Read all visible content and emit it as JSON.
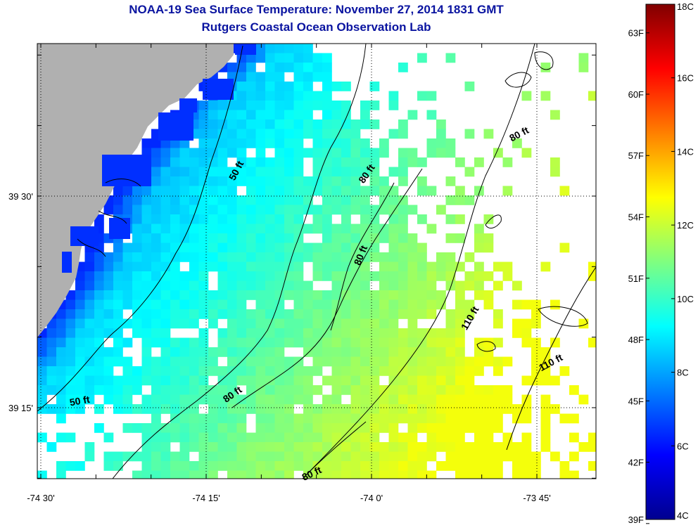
{
  "title": "NOAA-19 Sea Surface Temperature:  November 27, 2014 1831 GMT",
  "subtitle": "Rutgers Coastal Ocean Observation Lab",
  "axes": {
    "lon_ticks": [
      {
        "value": -74.5,
        "label": "-74 30'"
      },
      {
        "value": -74.25,
        "label": "-74 15'"
      },
      {
        "value": -74.0,
        "label": "-74 0'"
      },
      {
        "value": -73.75,
        "label": "-73 45'"
      }
    ],
    "lat_ticks": [
      {
        "value": 39.5,
        "label": "39 30'"
      },
      {
        "value": 39.25,
        "label": "39 15'"
      }
    ]
  },
  "depth_labels": [
    {
      "text": "50 ft",
      "rot": -62
    },
    {
      "text": "80 ft",
      "rot": -55
    },
    {
      "text": "80 ft",
      "rot": -28
    },
    {
      "text": "80 ft",
      "rot": -68
    },
    {
      "text": "110 ft",
      "rot": -60
    },
    {
      "text": "110 ft",
      "rot": -28
    },
    {
      "text": "50 ft",
      "rot": -10
    },
    {
      "text": "80 ft",
      "rot": -35
    },
    {
      "text": "80 ft",
      "rot": -25
    }
  ],
  "colorbar": {
    "celsius_labels": [
      "18C",
      "16C",
      "14C",
      "12C",
      "10C",
      "8C",
      "6C",
      "4C"
    ],
    "fahrenheit_labels": [
      "63F",
      "60F",
      "57F",
      "54F",
      "51F",
      "48F",
      "45F",
      "42F",
      "39F"
    ],
    "min_c": 4,
    "max_c": 18
  },
  "colors": {
    "title": "#0a14a0",
    "land": "#b0b0b0"
  }
}
